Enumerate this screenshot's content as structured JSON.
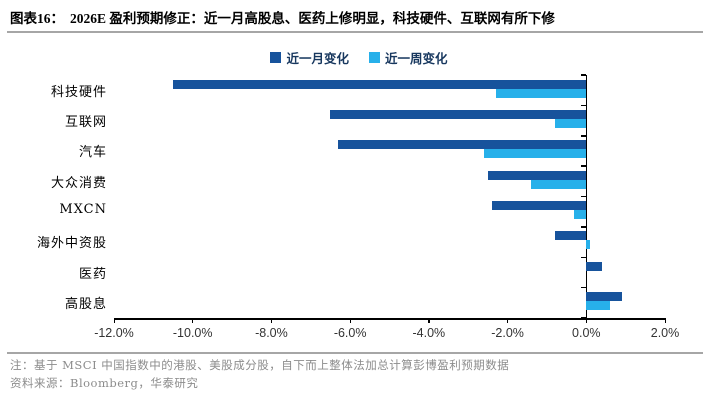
{
  "header": {
    "figure_label": "图表16：",
    "title": "2026E 盈利预期修正：近一月高股息、医药上修明显，科技硬件、互联网有所下修"
  },
  "chart_data": {
    "type": "bar",
    "orientation": "horizontal",
    "title": "2026E 盈利预期修正",
    "categories": [
      "科技硬件",
      "互联网",
      "汽车",
      "大众消费",
      "MXCN",
      "海外中资股",
      "医药",
      "高股息"
    ],
    "series": [
      {
        "name": "近一月变化",
        "color": "#17539c",
        "values": [
          -10.5,
          -6.5,
          -6.3,
          -2.5,
          -2.4,
          -0.8,
          0.4,
          0.9
        ]
      },
      {
        "name": "近一周变化",
        "color": "#27b0ea",
        "values": [
          -2.3,
          -0.8,
          -2.6,
          -1.4,
          -0.3,
          0.1,
          0.0,
          0.6
        ]
      }
    ],
    "x_ticks": [
      "-12.0%",
      "-10.0%",
      "-8.0%",
      "-6.0%",
      "-4.0%",
      "-2.0%",
      "0.0%",
      "2.0%"
    ],
    "xlim": [
      -12,
      2
    ],
    "unit": "%",
    "legend_position": "top-center",
    "grid": false
  },
  "footer": {
    "note": "注：基于 MSCI 中国指数中的港股、美股成分股，自下而上整体法加总计算彭博盈利预期数据",
    "source": "资料来源：Bloomberg，华泰研究"
  }
}
